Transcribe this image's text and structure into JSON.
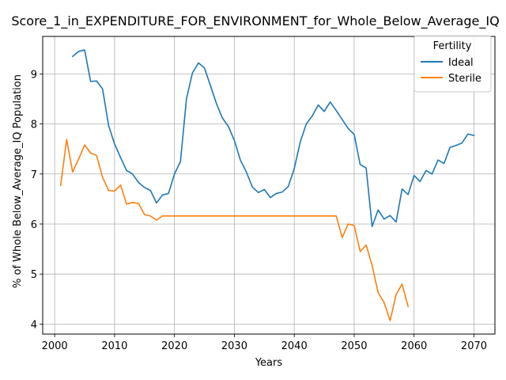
{
  "chart_data": {
    "type": "line",
    "title": "Score_1_in_EXPENDITURE_FOR_ENVIRONMENT_for_Whole_Below_Average_IQ",
    "xlabel": "Years",
    "ylabel": "% of Whole Below_Average_IQ Population",
    "xlim": [
      1998,
      2073.5
    ],
    "ylim": [
      3.8,
      9.75
    ],
    "xticks": [
      2000,
      2010,
      2020,
      2030,
      2040,
      2050,
      2060,
      2070
    ],
    "yticks": [
      4,
      5,
      6,
      7,
      8,
      9
    ],
    "grid": true,
    "legend": {
      "title": "Fertility",
      "placement": "top-right"
    },
    "series": [
      {
        "name": "Ideal",
        "color": "#1f77b4",
        "x": [
          2003,
          2004,
          2005,
          2006,
          2007,
          2008,
          2009,
          2010,
          2011,
          2012,
          2013,
          2014,
          2015,
          2016,
          2017,
          2018,
          2019,
          2020,
          2021,
          2022,
          2023,
          2024,
          2025,
          2026,
          2027,
          2028,
          2029,
          2030,
          2031,
          2032,
          2033,
          2034,
          2035,
          2036,
          2037,
          2038,
          2039,
          2040,
          2041,
          2042,
          2043,
          2044,
          2045,
          2046,
          2047,
          2048,
          2049,
          2050,
          2051,
          2052,
          2053,
          2054,
          2055,
          2056,
          2057,
          2058,
          2059,
          2060,
          2061,
          2062,
          2063,
          2064,
          2065,
          2066,
          2067,
          2068,
          2069,
          2070
        ],
        "values": [
          9.35,
          9.45,
          9.48,
          8.85,
          8.86,
          8.7,
          7.97,
          7.6,
          7.33,
          7.07,
          7.0,
          6.83,
          6.73,
          6.67,
          6.42,
          6.58,
          6.61,
          7.0,
          7.25,
          8.5,
          9.02,
          9.22,
          9.12,
          8.77,
          8.41,
          8.12,
          7.95,
          7.67,
          7.28,
          7.04,
          6.74,
          6.63,
          6.69,
          6.53,
          6.61,
          6.64,
          6.75,
          7.11,
          7.64,
          8.0,
          8.16,
          8.38,
          8.25,
          8.44,
          8.27,
          8.09,
          7.91,
          7.79,
          7.19,
          7.12,
          5.95,
          6.28,
          6.1,
          6.17,
          6.04,
          6.7,
          6.59,
          6.97,
          6.85,
          7.07,
          7.0,
          7.28,
          7.21,
          7.53,
          7.57,
          7.62,
          7.8,
          7.77
        ]
      },
      {
        "name": "Sterile",
        "color": "#ff7f0e",
        "x": [
          2001,
          2002,
          2003,
          2004,
          2005,
          2006,
          2007,
          2008,
          2009,
          2010,
          2011,
          2012,
          2013,
          2014,
          2015,
          2016,
          2017,
          2018,
          2019,
          2020,
          2021,
          2022,
          2023,
          2024,
          2025,
          2026,
          2027,
          2028,
          2029,
          2030,
          2031,
          2032,
          2033,
          2034,
          2035,
          2036,
          2037,
          2038,
          2039,
          2040,
          2041,
          2042,
          2043,
          2044,
          2045,
          2046,
          2047,
          2048,
          2049,
          2050,
          2051,
          2052,
          2053,
          2054,
          2055,
          2056,
          2057,
          2058,
          2059
        ],
        "values": [
          6.77,
          7.69,
          7.04,
          7.3,
          7.58,
          7.42,
          7.37,
          6.93,
          6.67,
          6.66,
          6.78,
          6.4,
          6.43,
          6.41,
          6.19,
          6.16,
          6.08,
          6.16,
          6.16,
          6.16,
          6.16,
          6.16,
          6.16,
          6.16,
          6.16,
          6.16,
          6.16,
          6.16,
          6.16,
          6.16,
          6.16,
          6.16,
          6.16,
          6.16,
          6.16,
          6.16,
          6.16,
          6.16,
          6.16,
          6.16,
          6.16,
          6.16,
          6.16,
          6.16,
          6.16,
          6.16,
          6.16,
          5.73,
          6.0,
          5.97,
          5.45,
          5.58,
          5.17,
          4.63,
          4.43,
          4.07,
          4.59,
          4.8,
          4.35
        ]
      }
    ]
  }
}
